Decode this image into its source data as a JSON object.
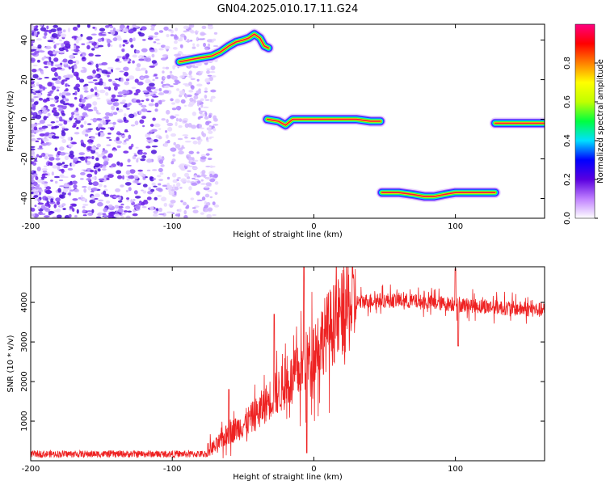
{
  "title": "GN04.2025.010.17.11.G24",
  "chart_data": [
    {
      "type": "heatmap",
      "xlabel": "Height of straight line (km)",
      "ylabel": "Frequency (Hz)",
      "xlim": [
        -200,
        163
      ],
      "ylim": [
        -50,
        48
      ],
      "xticks": [
        -200,
        -100,
        0,
        100
      ],
      "yticks": [
        -40,
        -20,
        0,
        20,
        40
      ],
      "colorbar": {
        "label": "Normalized spectral amplitude",
        "range": [
          0,
          1
        ],
        "ticks": [
          "0.0",
          "0.2",
          "0.4",
          "0.6",
          "0.8"
        ],
        "ticks_values": [
          0,
          0.2,
          0.4,
          0.6,
          0.8
        ],
        "colors": [
          "#ffffff",
          "#c080ff",
          "#5a00e0",
          "#0000ff",
          "#00e0ff",
          "#00ff40",
          "#c0ff00",
          "#ffff00",
          "#ff8000",
          "#ff0000",
          "#ff0080"
        ]
      },
      "noise_region": {
        "x": [
          -200,
          -80
        ],
        "y": [
          -50,
          48
        ],
        "color": "#7a2cf0"
      },
      "tracks": [
        {
          "x": [
            -95,
            -88,
            -80,
            -72,
            -66,
            -60,
            -55,
            -50,
            -46,
            -42,
            -38,
            -35,
            -32
          ],
          "y": [
            29,
            30,
            31,
            32,
            34,
            37,
            39,
            40,
            41,
            43,
            41,
            37,
            36
          ]
        },
        {
          "x": [
            -33,
            -25,
            -20,
            -15,
            -10,
            0,
            10,
            20,
            30,
            40,
            47
          ],
          "y": [
            0,
            -1,
            -3,
            0,
            0,
            0,
            0,
            0,
            0,
            -1,
            -1
          ]
        },
        {
          "x": [
            48,
            60,
            70,
            78,
            85,
            92,
            100,
            110,
            128
          ],
          "y": [
            -37,
            -37,
            -38,
            -39,
            -39,
            -38,
            -37,
            -37,
            -37
          ]
        },
        {
          "x": [
            128,
            140,
            150,
            163
          ],
          "y": [
            -2,
            -2,
            -2,
            -2
          ]
        }
      ]
    },
    {
      "type": "line",
      "xlabel": "Height of straight line (km)",
      "ylabel": "SNR (10 * v/v)",
      "xlim": [
        -200,
        163
      ],
      "ylim": [
        0,
        4900
      ],
      "xticks": [
        -200,
        -100,
        0,
        100
      ],
      "yticks": [
        1000,
        2000,
        3000,
        4000
      ],
      "color": "#ee2222",
      "envelope": {
        "x": [
          -200,
          -150,
          -100,
          -80,
          -70,
          -60,
          -50,
          -40,
          -30,
          -20,
          -10,
          0,
          10,
          20,
          30,
          40,
          60,
          80,
          100,
          120,
          140,
          163
        ],
        "y": [
          120,
          120,
          150,
          200,
          350,
          700,
          900,
          1200,
          1600,
          1900,
          2250,
          2800,
          3300,
          3700,
          4000,
          4050,
          4050,
          4000,
          3950,
          3900,
          3850,
          3800
        ]
      },
      "spikes": [
        {
          "x": -60,
          "y": 1800
        },
        {
          "x": -28,
          "y": 3700
        },
        {
          "x": -7,
          "y": 4900
        },
        {
          "x": -5,
          "y": 200
        },
        {
          "x": 100,
          "y": 4850
        },
        {
          "x": 102,
          "y": 2900
        }
      ]
    }
  ]
}
